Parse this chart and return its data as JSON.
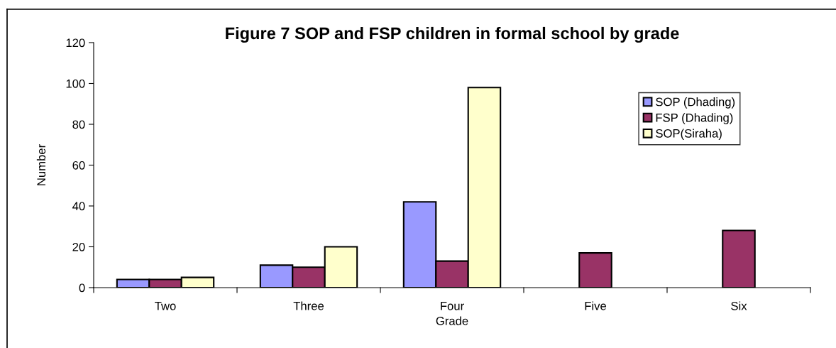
{
  "chart_data": {
    "type": "bar",
    "title": "Figure 7 SOP and FSP children in formal school by grade",
    "xlabel": "Grade",
    "ylabel": "Number",
    "categories": [
      "Two",
      "Three",
      "Four",
      "Five",
      "Six"
    ],
    "series": [
      {
        "name": "SOP (Dhading)",
        "color": "#9999ff",
        "values": [
          4,
          11,
          42,
          null,
          null
        ]
      },
      {
        "name": "FSP (Dhading)",
        "color": "#993366",
        "values": [
          4,
          10,
          13,
          17,
          28
        ]
      },
      {
        "name": "SOP(Siraha)",
        "color": "#ffffcc",
        "values": [
          5,
          20,
          98,
          null,
          null
        ]
      }
    ],
    "ylim": [
      0,
      120
    ],
    "yticks": [
      0,
      20,
      40,
      60,
      80,
      100,
      120
    ],
    "grid": false,
    "legend": "top right"
  }
}
